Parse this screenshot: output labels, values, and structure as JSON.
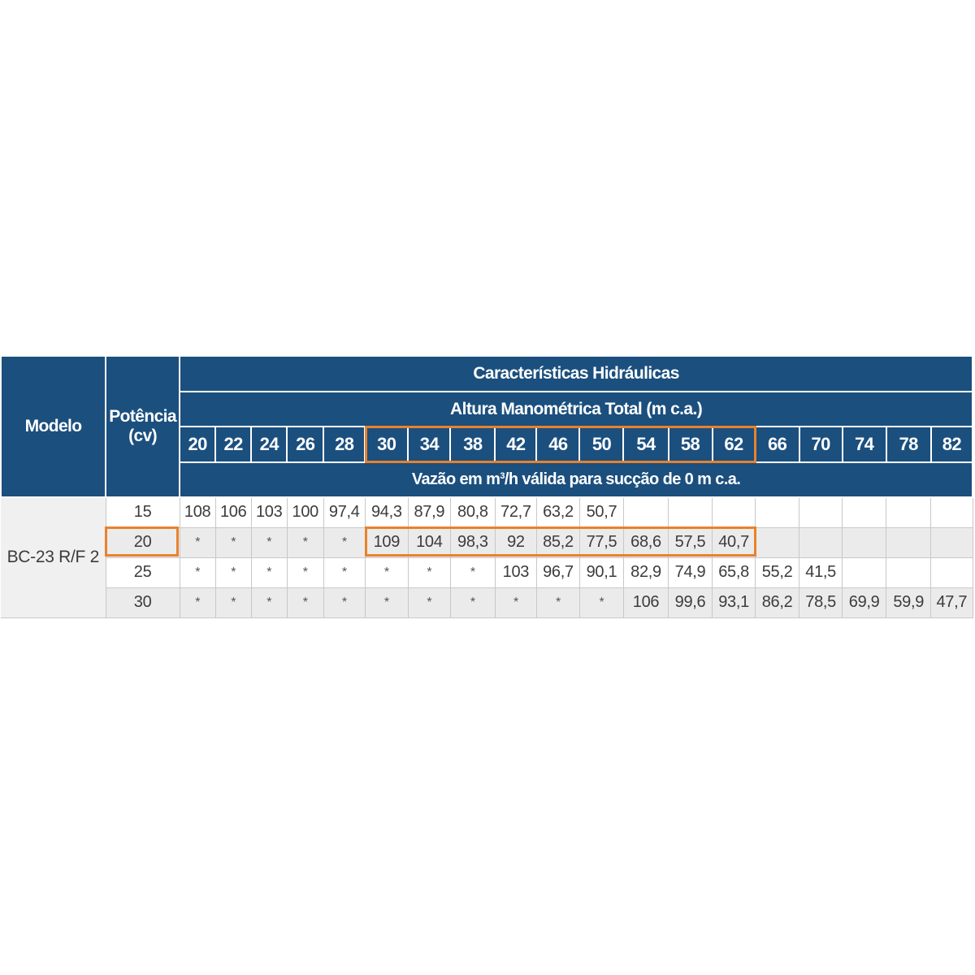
{
  "table": {
    "model_header": "Modelo",
    "power_header_line1": "Potência",
    "power_header_line2": "(cv)",
    "main_header": "Características Hidráulicas",
    "sub_header": "Altura Manométrica Total (m c.a.)",
    "flow_header_prefix": "Vazão em m",
    "flow_header_sup": "3",
    "flow_header_suffix": "/h válida para sucção de 0 m c.a.",
    "heights": [
      "20",
      "22",
      "24",
      "26",
      "28",
      "30",
      "34",
      "38",
      "42",
      "46",
      "50",
      "54",
      "58",
      "62",
      "66",
      "70",
      "74",
      "78",
      "82"
    ],
    "model": "BC-23 R/F 2",
    "rows": [
      {
        "power": "15",
        "values": [
          "108",
          "106",
          "103",
          "100",
          "97,4",
          "94,3",
          "87,9",
          "80,8",
          "72,7",
          "63,2",
          "50,7",
          "",
          "",
          "",
          "",
          "",
          "",
          "",
          ""
        ]
      },
      {
        "power": "20",
        "values": [
          "*",
          "*",
          "*",
          "*",
          "*",
          "109",
          "104",
          "98,3",
          "92",
          "85,2",
          "77,5",
          "68,6",
          "57,5",
          "40,7",
          "",
          "",
          "",
          "",
          ""
        ]
      },
      {
        "power": "25",
        "values": [
          "*",
          "*",
          "*",
          "*",
          "*",
          "*",
          "*",
          "*",
          "103",
          "96,7",
          "90,1",
          "82,9",
          "74,9",
          "65,8",
          "55,2",
          "41,5",
          "",
          "",
          ""
        ]
      },
      {
        "power": "30",
        "values": [
          "*",
          "*",
          "*",
          "*",
          "*",
          "*",
          "*",
          "*",
          "*",
          "*",
          "*",
          "106",
          "99,6",
          "93,1",
          "86,2",
          "78,5",
          "69,9",
          "59,9",
          "47,7"
        ]
      }
    ]
  },
  "colors": {
    "header_blue": "#1b4f7e",
    "highlight_orange": "#e8822c"
  }
}
